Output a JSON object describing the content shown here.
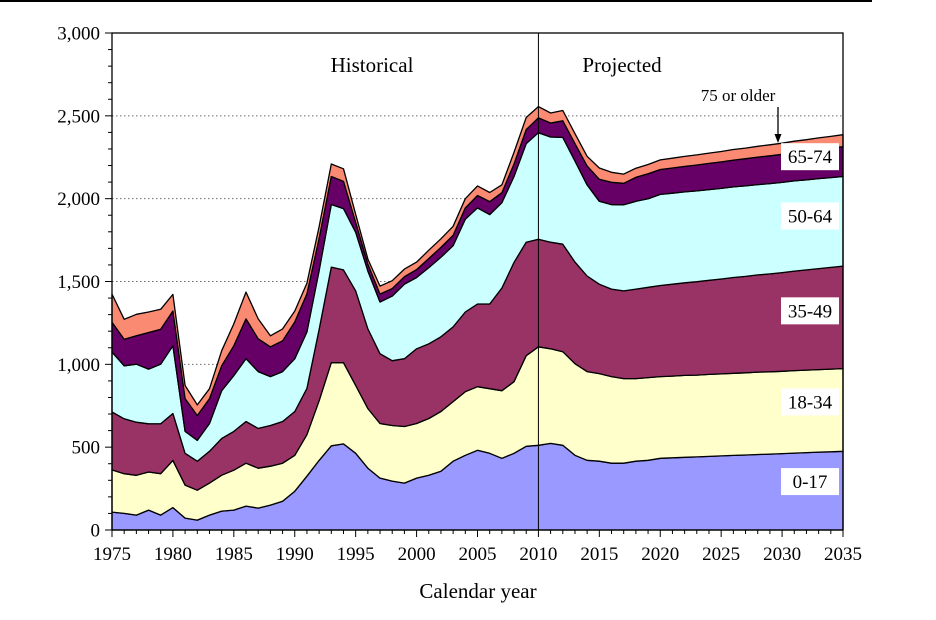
{
  "labels": {
    "historical": "Historical",
    "projected": "Projected",
    "oldest_annotation": "75 or older",
    "x_axis_title": "Calendar year"
  },
  "axes": {
    "x_range": [
      1975,
      2035
    ],
    "x_major_step": 5,
    "x_minor_step": 1,
    "y_range": [
      0,
      3000
    ],
    "y_major_step": 500,
    "y_minor_step": 100,
    "divider_year": 2010,
    "x_tick_labels": [
      "1975",
      "1980",
      "1985",
      "1990",
      "1995",
      "2000",
      "2005",
      "2010",
      "2015",
      "2020",
      "2025",
      "2030",
      "2035"
    ],
    "y_tick_labels": [
      "0",
      "500",
      "1,000",
      "1,500",
      "2,000",
      "2,500",
      "3,000"
    ]
  },
  "chart_data": {
    "type": "area",
    "stacked": true,
    "title": "",
    "xlabel": "Calendar year",
    "ylabel": "",
    "ylim": [
      0,
      3000
    ],
    "grid": "horizontal-dotted-majors",
    "legend_position": "inline-band-labels",
    "annotations": [
      "Historical",
      "Projected",
      "75 or older"
    ],
    "x": [
      1975,
      1976,
      1977,
      1978,
      1979,
      1980,
      1981,
      1982,
      1983,
      1984,
      1985,
      1986,
      1987,
      1988,
      1989,
      1990,
      1991,
      1992,
      1993,
      1994,
      1995,
      1996,
      1997,
      1998,
      1999,
      2000,
      2001,
      2002,
      2003,
      2004,
      2005,
      2006,
      2007,
      2008,
      2009,
      2010,
      2011,
      2012,
      2013,
      2014,
      2015,
      2016,
      2017,
      2018,
      2019,
      2020,
      2021,
      2022,
      2023,
      2024,
      2025,
      2026,
      2027,
      2028,
      2029,
      2030,
      2031,
      2032,
      2033,
      2034,
      2035
    ],
    "series": [
      {
        "name": "0-17",
        "color": "#9999FF",
        "values": [
          108,
          100,
          90,
          120,
          90,
          135,
          72,
          60,
          90,
          114,
          120,
          144,
          132,
          150,
          174,
          234,
          325,
          420,
          508,
          520,
          463,
          373,
          313,
          295,
          283,
          313,
          331,
          355,
          415,
          451,
          481,
          463,
          433,
          463,
          505,
          511,
          523,
          511,
          451,
          421,
          415,
          403,
          403,
          415,
          421,
          433,
          436,
          439,
          441,
          444,
          447,
          450,
          453,
          456,
          458,
          461,
          464,
          467,
          470,
          472,
          475
        ]
      },
      {
        "name": "18-34",
        "color": "#FFFFCC",
        "values": [
          255,
          240,
          240,
          230,
          250,
          285,
          199,
          180,
          193,
          217,
          241,
          259,
          241,
          235,
          229,
          217,
          250,
          360,
          502,
          490,
          409,
          360,
          330,
          336,
          342,
          330,
          342,
          360,
          360,
          384,
          384,
          390,
          408,
          432,
          547,
          595,
          571,
          565,
          553,
          535,
          529,
          523,
          511,
          499,
          499,
          493,
          493,
          494,
          494,
          495,
          495,
          496,
          496,
          497,
          497,
          497,
          498,
          498,
          498,
          499,
          499
        ]
      },
      {
        "name": "35-49",
        "color": "#993366",
        "values": [
          350,
          331,
          321,
          291,
          301,
          283,
          192,
          175,
          192,
          222,
          234,
          252,
          240,
          246,
          252,
          264,
          280,
          430,
          577,
          560,
          571,
          481,
          421,
          391,
          409,
          451,
          451,
          451,
          451,
          481,
          499,
          511,
          620,
          720,
          685,
          649,
          643,
          649,
          613,
          577,
          540,
          528,
          529,
          540,
          545,
          550,
          555,
          559,
          564,
          568,
          573,
          578,
          582,
          587,
          591,
          596,
          601,
          605,
          610,
          614,
          619
        ]
      },
      {
        "name": "50-64",
        "color": "#CCFFFF",
        "values": [
          361,
          320,
          350,
          330,
          360,
          409,
          132,
          126,
          168,
          288,
          337,
          379,
          343,
          295,
          301,
          319,
          340,
          355,
          378,
          370,
          354,
          349,
          312,
          390,
          450,
          430,
          460,
          480,
          490,
          560,
          580,
          540,
          515,
          519,
          595,
          643,
          635,
          645,
          610,
          550,
          500,
          510,
          520,
          530,
          535,
          550,
          549,
          549,
          548,
          548,
          547,
          547,
          546,
          545,
          545,
          544,
          544,
          543,
          543,
          542,
          541
        ]
      },
      {
        "name": "65-74",
        "color": "#660066",
        "values": [
          180,
          161,
          171,
          221,
          211,
          210,
          198,
          150,
          150,
          151,
          180,
          240,
          198,
          180,
          186,
          222,
          230,
          195,
          169,
          165,
          60,
          42,
          48,
          45,
          45,
          48,
          55,
          60,
          62,
          68,
          75,
          78,
          60,
          75,
          85,
          90,
          85,
          100,
          105,
          115,
          133,
          135,
          130,
          145,
          150,
          150,
          152,
          154,
          156,
          158,
          160,
          162,
          164,
          166,
          168,
          170,
          172,
          174,
          176,
          178,
          180
        ]
      },
      {
        "name": "75 or older",
        "color": "#FA8A72",
        "values": [
          170,
          120,
          130,
          124,
          120,
          100,
          79,
          64,
          60,
          90,
          132,
          162,
          120,
          66,
          72,
          66,
          65,
          70,
          75,
          75,
          48,
          30,
          48,
          48,
          46,
          45,
          50,
          52,
          55,
          56,
          58,
          55,
          48,
          70,
          73,
          68,
          60,
          62,
          60,
          58,
          68,
          60,
          55,
          55,
          56,
          58,
          59,
          60,
          61,
          62,
          63,
          64,
          64,
          65,
          66,
          67,
          68,
          69,
          70,
          71,
          72
        ]
      }
    ]
  }
}
